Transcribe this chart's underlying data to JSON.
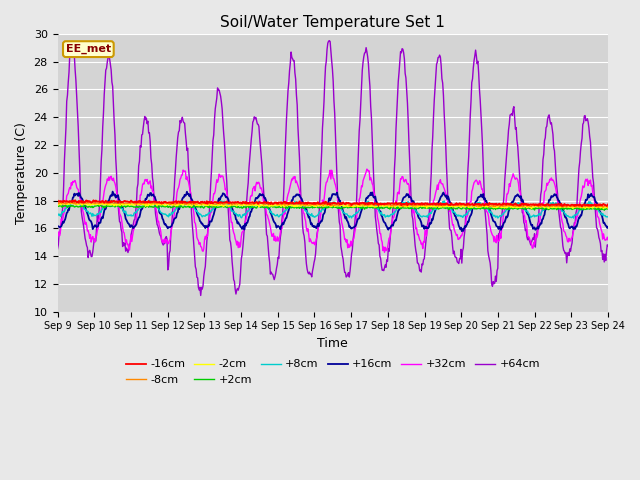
{
  "title": "Soil/Water Temperature Set 1",
  "xlabel": "Time",
  "ylabel": "Temperature (C)",
  "ylim": [
    10,
    30
  ],
  "background_color": "#e8e8e8",
  "plot_bg_color": "#d4d4d4",
  "annotation_text": "EE_met",
  "annotation_bg": "#ffffcc",
  "annotation_border": "#cc9900",
  "n_days": 15,
  "x_tick_labels": [
    "Sep 9",
    "Sep 10",
    "Sep 11",
    "Sep 12",
    "Sep 13",
    "Sep 14",
    "Sep 15",
    "Sep 16",
    "Sep 17",
    "Sep 18",
    "Sep 19",
    "Sep 20",
    "Sep 21",
    "Sep 22",
    "Sep 23",
    "Sep 24"
  ],
  "series_colors": {
    "-16cm": "#ff0000",
    "-8cm": "#ff8800",
    "-2cm": "#ffff00",
    "+2cm": "#00cc00",
    "+8cm": "#00cccc",
    "+16cm": "#000099",
    "+32cm": "#ff00ff",
    "+64cm": "#9900cc"
  },
  "legend_row1": [
    "-16cm",
    "-8cm",
    "-2cm",
    "+2cm",
    "+8cm",
    "+16cm"
  ],
  "legend_row2": [
    "+32cm",
    "+64cm"
  ],
  "figsize": [
    6.4,
    4.8
  ],
  "dpi": 100
}
